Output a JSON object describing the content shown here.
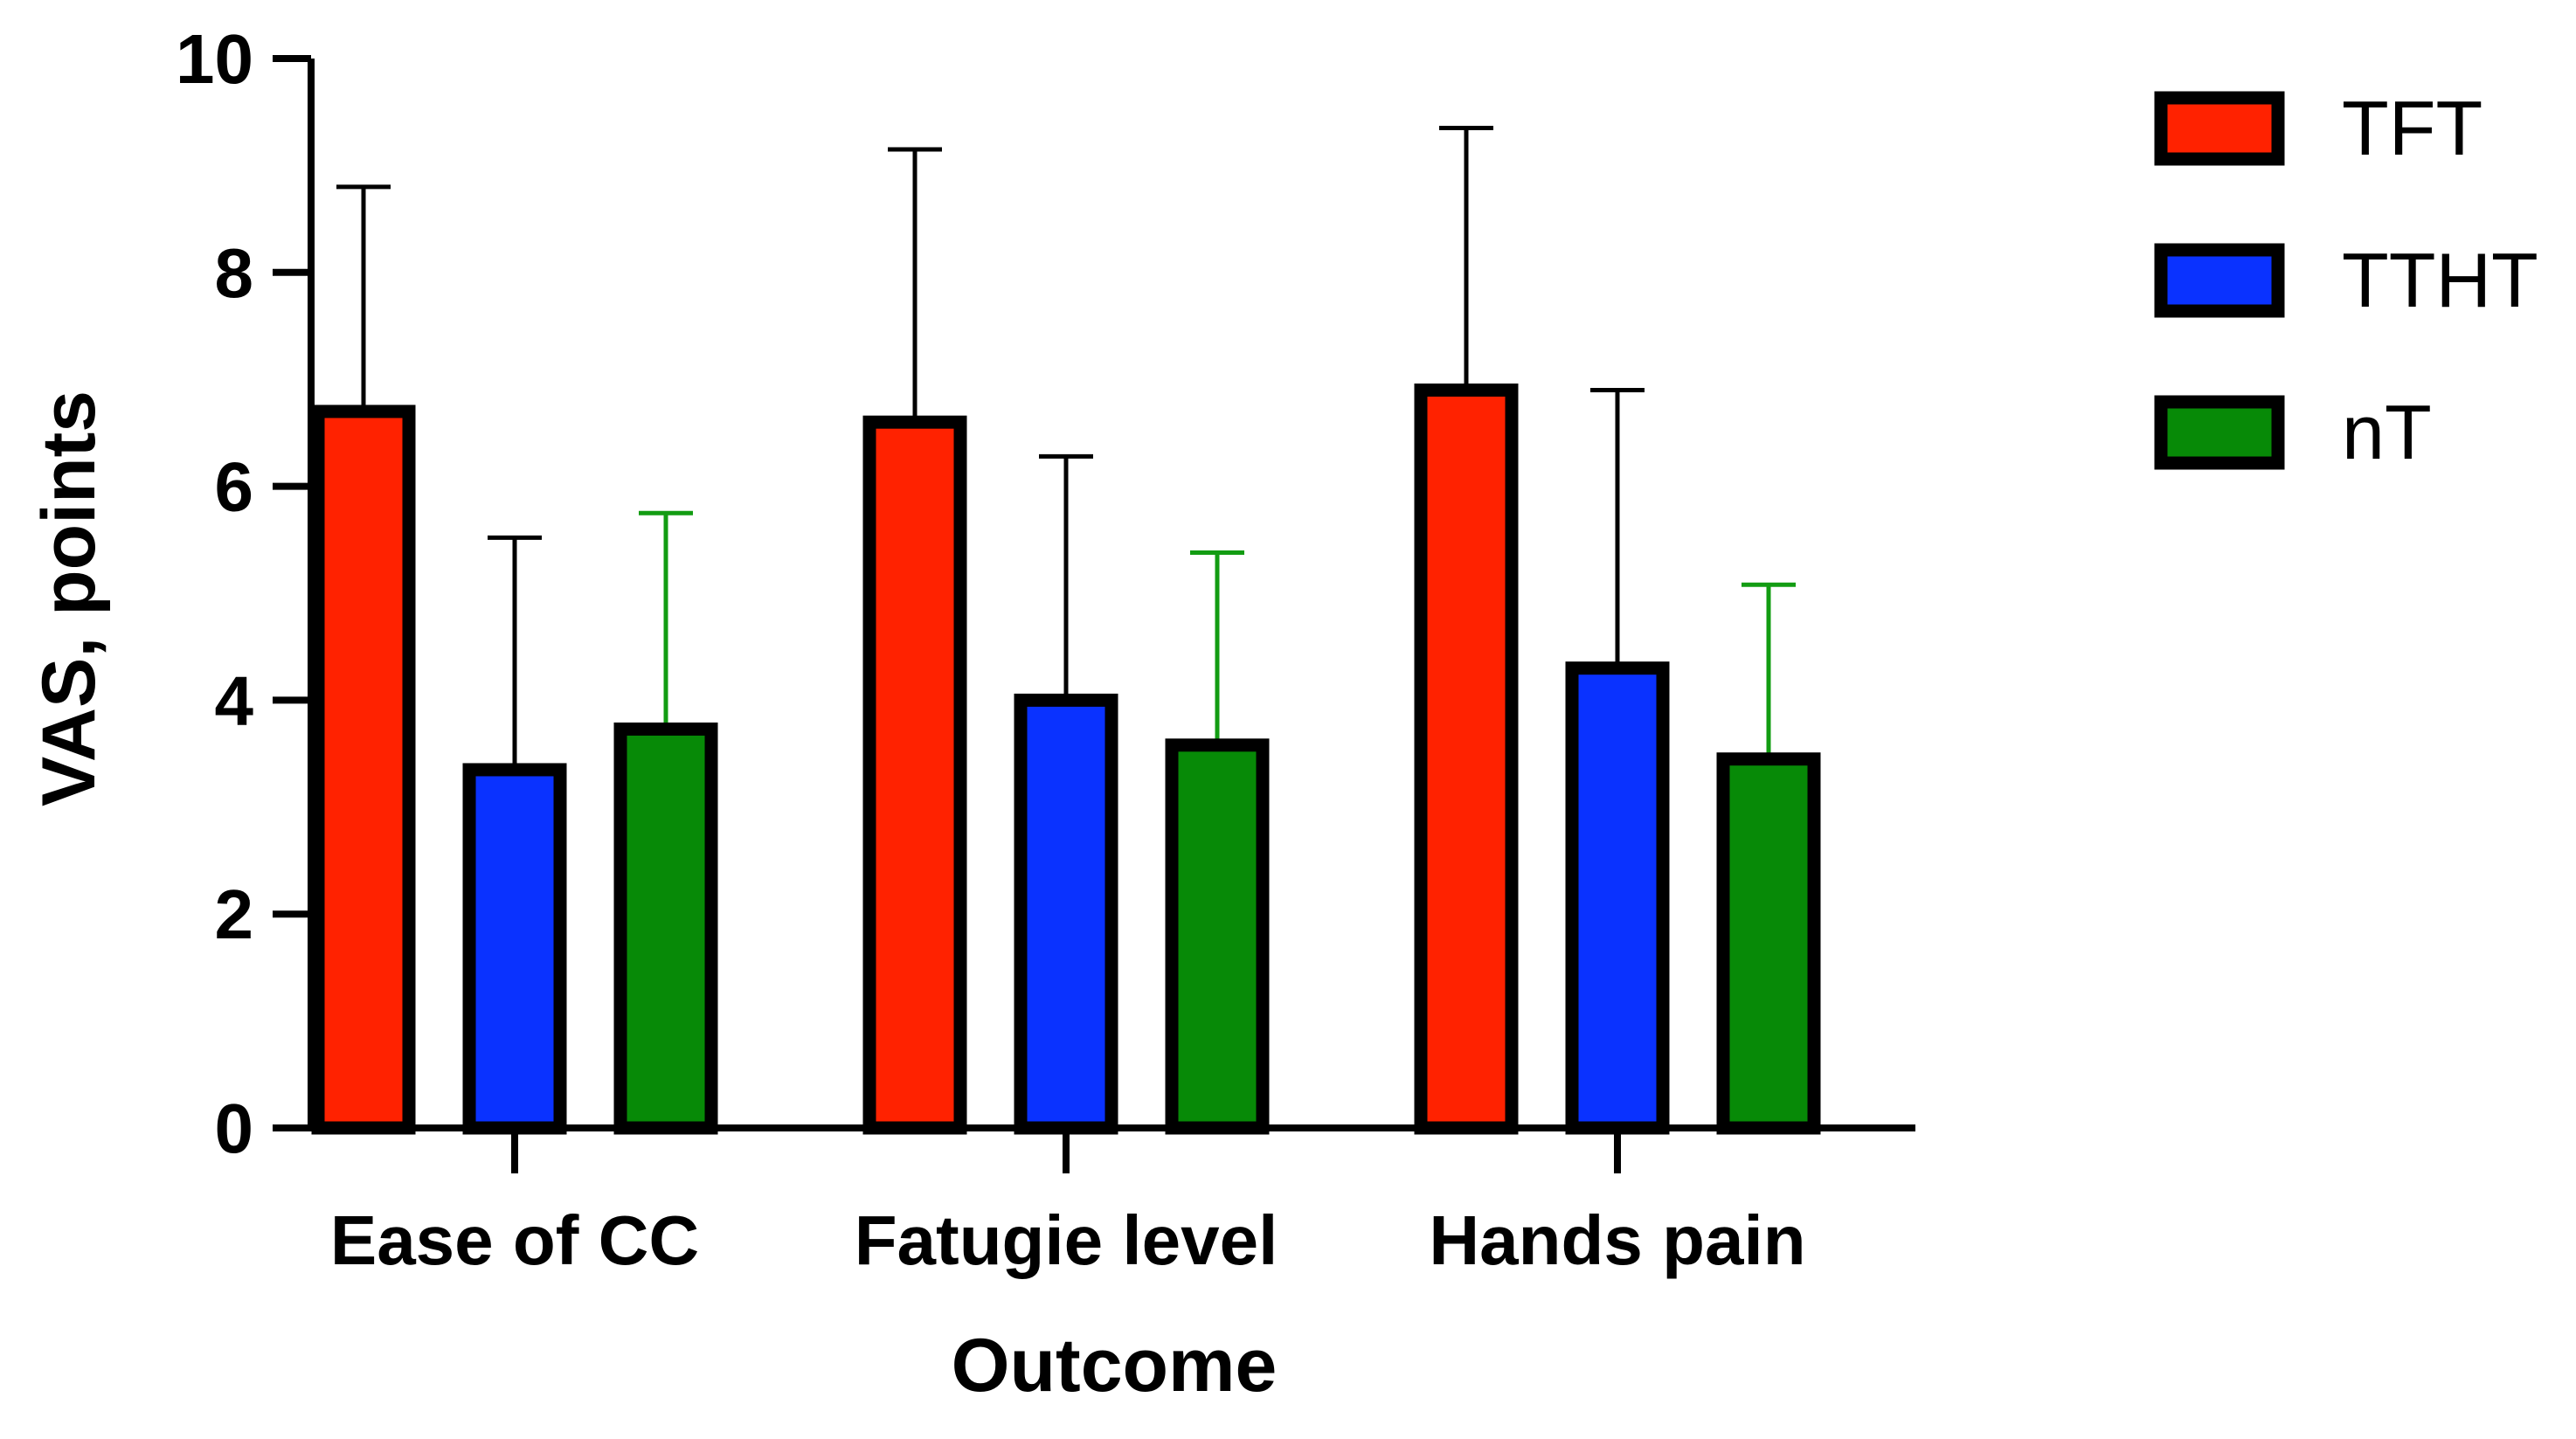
{
  "chart_data": {
    "type": "bar",
    "title": "",
    "xlabel": "Outcome",
    "ylabel": "VAS, points",
    "ylim": [
      0,
      10
    ],
    "yticks": [
      0,
      2,
      4,
      6,
      8,
      10
    ],
    "categories": [
      "Ease of CC",
      "Fatugie level",
      "Hands pain"
    ],
    "series": [
      {
        "name": "TFT",
        "color": "#FF2200",
        "error_color": "#000000",
        "values": [
          6.7,
          6.6,
          6.9
        ],
        "errors": [
          2.1,
          2.55,
          2.45
        ]
      },
      {
        "name": "TTHT",
        "color": "#0A32FF",
        "error_color": "#000000",
        "values": [
          3.35,
          4.0,
          4.3
        ],
        "errors": [
          2.17,
          2.28,
          2.6
        ]
      },
      {
        "name": "nT",
        "color": "#078A07",
        "error_color": "#129C12",
        "values": [
          3.73,
          3.58,
          3.45
        ],
        "errors": [
          2.02,
          1.8,
          1.63
        ]
      }
    ],
    "legend_position": "top-right",
    "grid": false
  }
}
